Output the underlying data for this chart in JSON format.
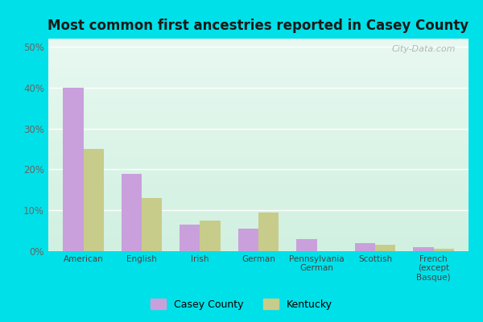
{
  "title": "Most common first ancestries reported in Casey County",
  "categories": [
    "American",
    "English",
    "Irish",
    "German",
    "Pennsylvania\nGerman",
    "Scottish",
    "French\n(except\nBasque)"
  ],
  "casey_county": [
    40,
    19,
    6.5,
    5.5,
    3,
    2,
    1
  ],
  "kentucky": [
    25,
    13,
    7.5,
    9.5,
    0,
    1.5,
    0.5
  ],
  "casey_color": "#c9a0dc",
  "kentucky_color": "#c8cc8a",
  "bar_width": 0.35,
  "ylim": [
    0,
    52
  ],
  "yticks": [
    0,
    10,
    20,
    30,
    40,
    50
  ],
  "ytick_labels": [
    "0%",
    "10%",
    "20%",
    "30%",
    "40%",
    "50%"
  ],
  "legend_labels": [
    "Casey County",
    "Kentucky"
  ],
  "background_outer": "#00e0e8",
  "title_fontsize": 12,
  "watermark": "City-Data.com"
}
